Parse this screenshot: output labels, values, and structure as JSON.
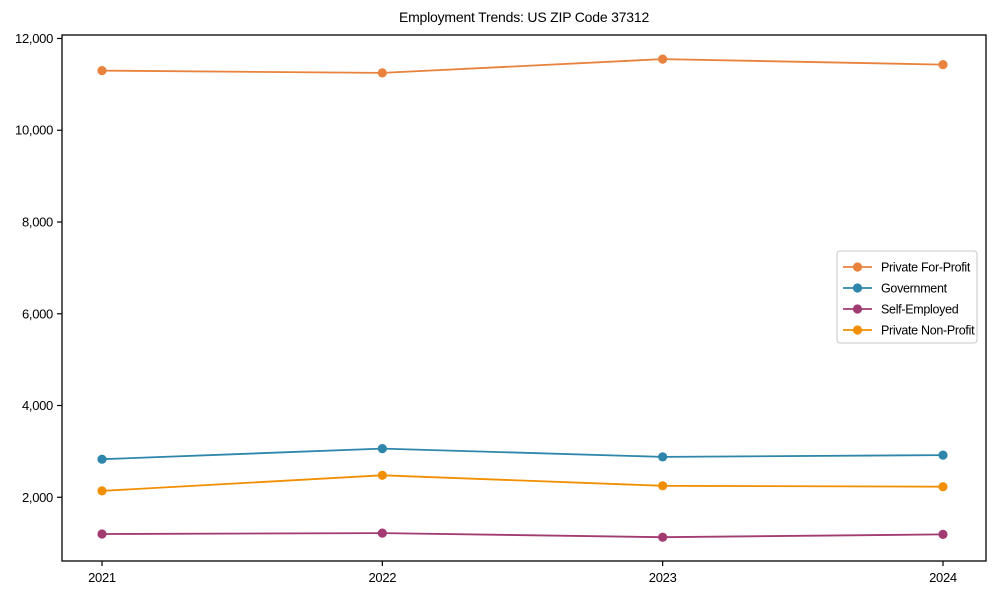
{
  "figure": {
    "background_color": "#ffffff",
    "axis_color": "#000000",
    "legend_border_color": "#c9c9c9"
  },
  "chart_data": {
    "type": "line",
    "title": "Employment Trends: US ZIP Code 37312",
    "x": [
      "2021",
      "2022",
      "2023",
      "2024"
    ],
    "series": [
      {
        "name": "Private For-Profit",
        "color": "#E8823D",
        "values": [
          11300,
          11250,
          11550,
          11430
        ]
      },
      {
        "name": "Government",
        "color": "#2E86AB",
        "values": [
          2830,
          3060,
          2880,
          2920
        ]
      },
      {
        "name": "Self-Employed",
        "color": "#A23B72",
        "values": [
          1200,
          1220,
          1130,
          1190
        ]
      },
      {
        "name": "Private Non-Profit",
        "color": "#F18F01",
        "values": [
          2140,
          2480,
          2250,
          2230
        ]
      }
    ],
    "xlabel": "",
    "ylabel": "",
    "ylim": [
      611,
      12076
    ],
    "y_ticks": [
      2000,
      4000,
      6000,
      8000,
      10000,
      12000
    ],
    "y_tick_labels": [
      "2,000",
      "4,000",
      "6,000",
      "8,000",
      "10,000",
      "12,000"
    ],
    "grid": false,
    "legend_position": "right-middle",
    "marker": "circle"
  }
}
